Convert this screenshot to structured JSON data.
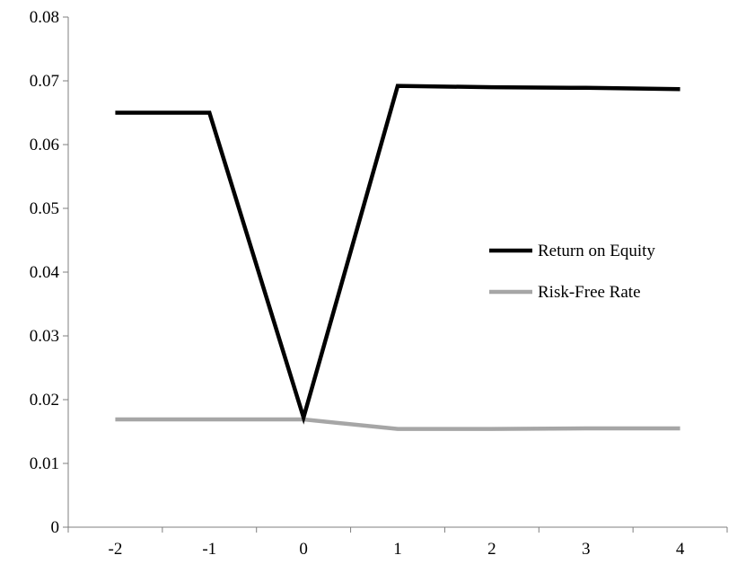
{
  "chart_data": {
    "type": "line",
    "title": "",
    "xlabel": "",
    "ylabel": "",
    "categories": [
      "-2",
      "-1",
      "0",
      "1",
      "2",
      "3",
      "4"
    ],
    "ylim": [
      0,
      0.08
    ],
    "yticks": [
      "0",
      "0.01",
      "0.02",
      "0.03",
      "0.04",
      "0.05",
      "0.06",
      "0.07",
      "0.08"
    ],
    "grid": false,
    "legend_position": "right",
    "series": [
      {
        "name": "Return on Equity",
        "color": "#000000",
        "values": [
          0.065,
          0.065,
          0.0172,
          0.0692,
          0.069,
          0.0689,
          0.0687
        ]
      },
      {
        "name": "Risk-Free Rate",
        "color": "#a6a6a6",
        "values": [
          0.0169,
          0.0169,
          0.0169,
          0.0154,
          0.0154,
          0.0155,
          0.0155
        ]
      }
    ]
  }
}
